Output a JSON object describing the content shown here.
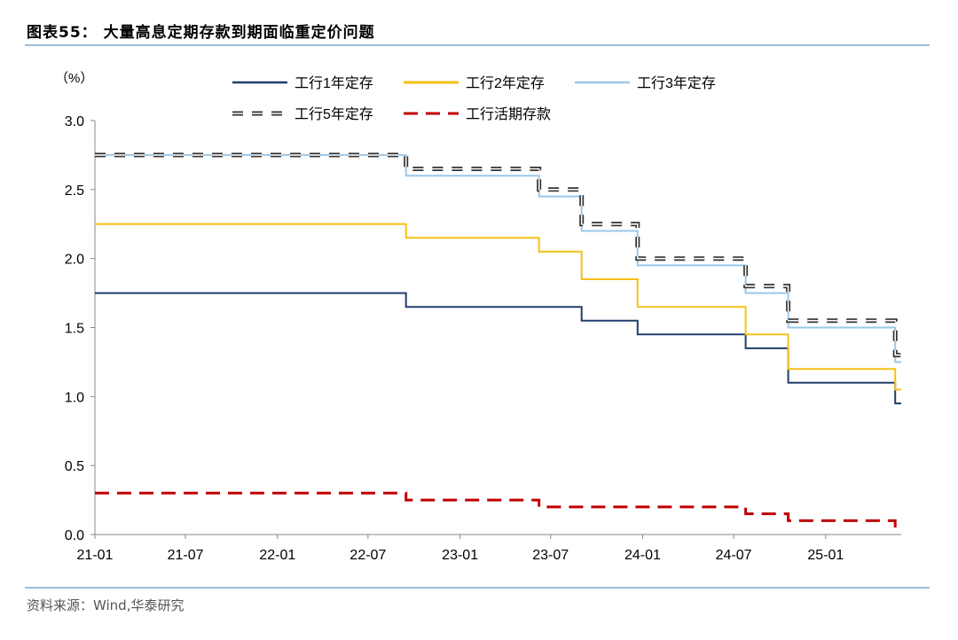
{
  "header": {
    "title": "图表55： 大量高息定期存款到期面临重定价问题"
  },
  "footer": {
    "source": "资料来源：Wind,华泰研究"
  },
  "chart_data": {
    "type": "line",
    "ylabel": "（%）",
    "ylim": [
      0,
      3.0
    ],
    "yticks": [
      0.0,
      0.5,
      1.0,
      1.5,
      2.0,
      2.5,
      3.0
    ],
    "ytick_labels": [
      "0.0",
      "0.5",
      "1.0",
      "1.5",
      "2.0",
      "2.5",
      "3.0"
    ],
    "xlim": [
      "2021-01",
      "2025-06"
    ],
    "xticks": [
      "21-01",
      "21-07",
      "22-01",
      "22-07",
      "23-01",
      "23-07",
      "24-01",
      "24-07",
      "25-01"
    ],
    "legend_position": "top",
    "grid": false,
    "series": [
      {
        "name": "工行1年定存",
        "color": "#1f3e6b",
        "style": "solid",
        "points": [
          [
            "2021-01-01",
            1.75
          ],
          [
            "2022-09-15",
            1.65
          ],
          [
            "2023-09-01",
            1.55
          ],
          [
            "2023-12-22",
            1.45
          ],
          [
            "2024-07-25",
            1.35
          ],
          [
            "2024-10-18",
            1.1
          ],
          [
            "2025-05-20",
            0.95
          ]
        ]
      },
      {
        "name": "工行2年定存",
        "color": "#f5c018",
        "style": "solid",
        "points": [
          [
            "2021-01-01",
            2.25
          ],
          [
            "2022-09-15",
            2.15
          ],
          [
            "2023-06-08",
            2.05
          ],
          [
            "2023-09-01",
            1.85
          ],
          [
            "2023-12-22",
            1.65
          ],
          [
            "2024-07-25",
            1.45
          ],
          [
            "2024-10-18",
            1.2
          ],
          [
            "2025-05-20",
            1.05
          ]
        ]
      },
      {
        "name": "工行3年定存",
        "color": "#9ac8ea",
        "style": "solid",
        "points": [
          [
            "2021-01-01",
            2.75
          ],
          [
            "2022-09-15",
            2.6
          ],
          [
            "2023-06-08",
            2.45
          ],
          [
            "2023-09-01",
            2.2
          ],
          [
            "2023-12-22",
            1.95
          ],
          [
            "2024-07-25",
            1.75
          ],
          [
            "2024-10-18",
            1.5
          ],
          [
            "2025-05-20",
            1.25
          ]
        ]
      },
      {
        "name": "工行5年定存",
        "color": "#222222",
        "style": "double-dash",
        "points": [
          [
            "2021-01-01",
            2.75
          ],
          [
            "2022-09-15",
            2.65
          ],
          [
            "2023-06-08",
            2.5
          ],
          [
            "2023-09-01",
            2.25
          ],
          [
            "2023-12-22",
            2.0
          ],
          [
            "2024-07-25",
            1.8
          ],
          [
            "2024-10-18",
            1.55
          ],
          [
            "2025-05-20",
            1.3
          ]
        ]
      },
      {
        "name": "工行活期存款",
        "color": "#c00000",
        "style": "dash",
        "points": [
          [
            "2021-01-01",
            0.3
          ],
          [
            "2022-09-15",
            0.25
          ],
          [
            "2023-06-08",
            0.2
          ],
          [
            "2024-07-25",
            0.15
          ],
          [
            "2024-10-18",
            0.1
          ],
          [
            "2025-05-20",
            0.05
          ]
        ]
      }
    ]
  }
}
